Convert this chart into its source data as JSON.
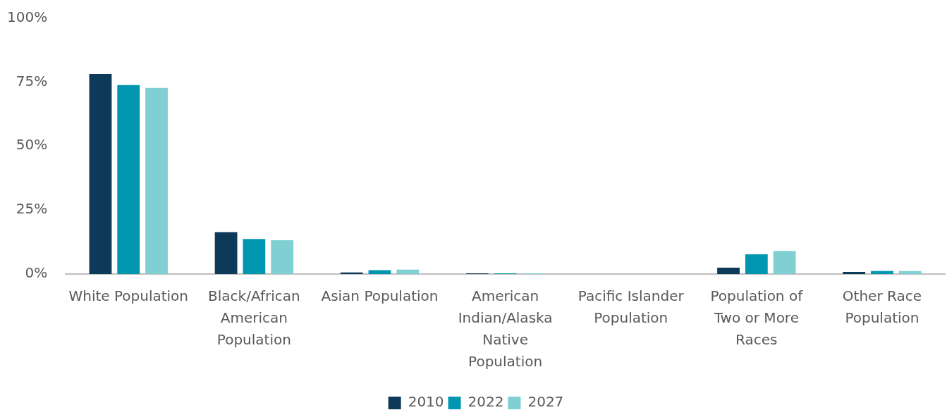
{
  "chart_data": {
    "type": "bar",
    "categories": [
      "White Population",
      "Black/African American Population",
      "Asian Population",
      "American Indian/Alaska Native Population",
      "Pacific Islander Population",
      "Population of Two or More Races",
      "Other Race Population"
    ],
    "series": [
      {
        "name": "2010",
        "color": "#0e3a5a",
        "values": [
          78.1,
          16.4,
          0.6,
          0.3,
          0,
          2.5,
          0.8
        ]
      },
      {
        "name": "2022",
        "color": "#0096b0",
        "values": [
          73.8,
          13.7,
          1.5,
          0.3,
          0,
          7.7,
          1.2
        ]
      },
      {
        "name": "2027",
        "color": "#80cfd2",
        "values": [
          72.7,
          13.2,
          1.7,
          0.3,
          0,
          9.0,
          1.2
        ]
      }
    ],
    "ylim": [
      0,
      100
    ],
    "yticks": [
      {
        "value": 0,
        "label": "0%"
      },
      {
        "value": 25,
        "label": "25%"
      },
      {
        "value": 50,
        "label": "50%"
      },
      {
        "value": 75,
        "label": "75%"
      },
      {
        "value": 100,
        "label": "100%"
      }
    ],
    "grid": false,
    "legend": "bottom"
  }
}
